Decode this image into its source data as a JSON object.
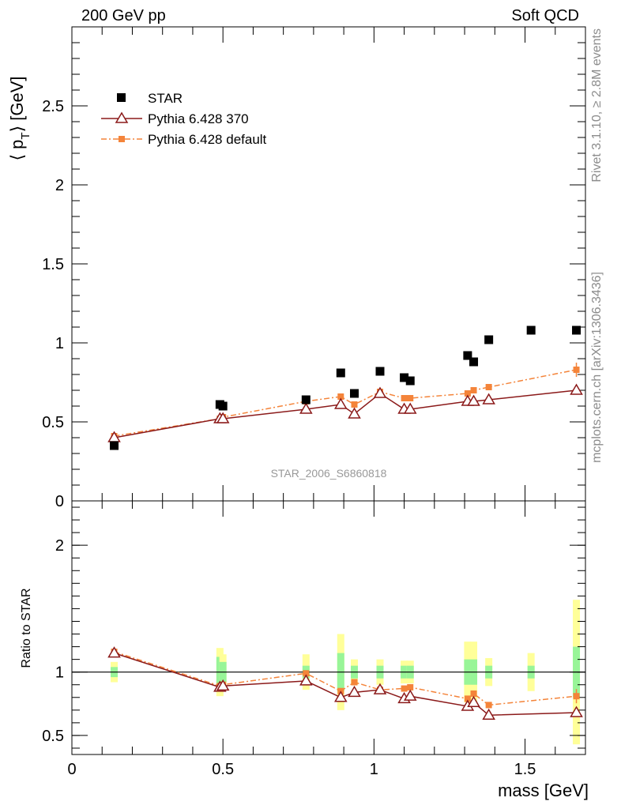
{
  "header": {
    "left": "200 GeV pp",
    "right": "Soft QCD"
  },
  "side_text": {
    "rivet": "Rivet 3.1.10, ≥ 2.8M events",
    "mcplots": "mcplots.cern.ch [arXiv:1306.3436]"
  },
  "watermark": "STAR_2006_S6860818",
  "colors": {
    "star": "#000000",
    "p370": "#8b1a1a",
    "pdefault": "#f4843a",
    "band_green": "#98f598",
    "band_yellow": "#ffff99"
  },
  "chart_data": [
    {
      "type": "scatter",
      "name": "main",
      "ylabel_main": "⟨ p",
      "ylabel_sub": "T",
      "ylabel_end": "⟩ [GeV]",
      "xlim": [
        0,
        1.7
      ],
      "ylim": [
        0,
        3.0
      ],
      "yticks": [
        {
          "v": 0,
          "label": "0"
        },
        {
          "v": 0.5,
          "label": "0.5"
        },
        {
          "v": 1,
          "label": "1"
        },
        {
          "v": 1.5,
          "label": "1.5"
        },
        {
          "v": 2,
          "label": "2"
        },
        {
          "v": 2.5,
          "label": "2.5"
        }
      ],
      "legend": [
        "STAR",
        "Pythia 6.428 370",
        "Pythia 6.428 default"
      ],
      "series": [
        {
          "name": "STAR",
          "x": [
            0.14,
            0.49,
            0.5,
            0.775,
            0.89,
            0.935,
            1.02,
            1.1,
            1.12,
            1.31,
            1.33,
            1.38,
            1.52,
            1.67
          ],
          "y": [
            0.35,
            0.61,
            0.6,
            0.64,
            0.81,
            0.68,
            0.82,
            0.78,
            0.76,
            0.92,
            0.88,
            1.02,
            1.08,
            1.08
          ]
        },
        {
          "name": "Pythia 6.428 370",
          "x": [
            0.14,
            0.49,
            0.5,
            0.775,
            0.89,
            0.935,
            1.02,
            1.1,
            1.12,
            1.31,
            1.33,
            1.38,
            1.67
          ],
          "y": [
            0.4,
            0.52,
            0.52,
            0.58,
            0.61,
            0.55,
            0.68,
            0.58,
            0.58,
            0.63,
            0.63,
            0.64,
            0.7
          ]
        },
        {
          "name": "Pythia 6.428 default",
          "x": [
            0.14,
            0.49,
            0.5,
            0.775,
            0.89,
            0.935,
            1.02,
            1.1,
            1.12,
            1.31,
            1.33,
            1.38,
            1.67
          ],
          "y": [
            0.41,
            0.52,
            0.53,
            0.63,
            0.66,
            0.61,
            0.69,
            0.65,
            0.65,
            0.68,
            0.7,
            0.72,
            0.83
          ]
        }
      ]
    },
    {
      "type": "scatter",
      "name": "ratio",
      "xlabel": "mass [GeV]",
      "ylabel": "Ratio to STAR",
      "xlim": [
        0,
        1.7
      ],
      "ylim": [
        0.35,
        2.35
      ],
      "xticks": [
        {
          "v": 0,
          "label": "0"
        },
        {
          "v": 0.5,
          "label": "0.5"
        },
        {
          "v": 1,
          "label": "1"
        },
        {
          "v": 1.5,
          "label": "1.5"
        }
      ],
      "yticks": [
        {
          "v": 0.5,
          "label": "0.5"
        },
        {
          "v": 1,
          "label": "1"
        },
        {
          "v": 2,
          "label": "2"
        }
      ],
      "bands": [
        {
          "x": 0.14,
          "g": [
            0.96,
            1.04
          ],
          "y": [
            0.92,
            1.08
          ]
        },
        {
          "x": 0.49,
          "g": [
            0.88,
            1.12
          ],
          "y": [
            0.81,
            1.19
          ]
        },
        {
          "x": 0.5,
          "g": [
            0.92,
            1.08
          ],
          "y": [
            0.86,
            1.14
          ]
        },
        {
          "x": 0.775,
          "g": [
            0.95,
            1.05
          ],
          "y": [
            0.86,
            1.14
          ]
        },
        {
          "x": 0.89,
          "g": [
            0.85,
            1.15
          ],
          "y": [
            0.7,
            1.3
          ]
        },
        {
          "x": 0.935,
          "g": [
            0.95,
            1.05
          ],
          "y": [
            0.9,
            1.1
          ]
        },
        {
          "x": 1.02,
          "g": [
            0.95,
            1.05
          ],
          "y": [
            0.9,
            1.1
          ]
        },
        {
          "x": 1.1,
          "g": [
            0.95,
            1.05
          ],
          "y": [
            0.91,
            1.09
          ]
        },
        {
          "x": 1.12,
          "g": [
            0.95,
            1.05
          ],
          "y": [
            0.91,
            1.09
          ]
        },
        {
          "x": 1.31,
          "g": [
            0.9,
            1.1
          ],
          "y": [
            0.76,
            1.24
          ]
        },
        {
          "x": 1.33,
          "g": [
            0.9,
            1.1
          ],
          "y": [
            0.76,
            1.24
          ]
        },
        {
          "x": 1.38,
          "g": [
            0.95,
            1.05
          ],
          "y": [
            0.89,
            1.11
          ]
        },
        {
          "x": 1.52,
          "g": [
            0.95,
            1.05
          ],
          "y": [
            0.85,
            1.15
          ]
        },
        {
          "x": 1.67,
          "g": [
            0.8,
            1.2
          ],
          "y": [
            0.43,
            1.57
          ]
        }
      ],
      "series": [
        {
          "name": "Pythia 6.428 370",
          "x": [
            0.14,
            0.49,
            0.5,
            0.775,
            0.89,
            0.935,
            1.02,
            1.1,
            1.12,
            1.31,
            1.33,
            1.38,
            1.67
          ],
          "y": [
            1.15,
            0.88,
            0.89,
            0.93,
            0.8,
            0.84,
            0.86,
            0.79,
            0.81,
            0.73,
            0.76,
            0.66,
            0.68
          ]
        },
        {
          "name": "Pythia 6.428 default",
          "x": [
            0.14,
            0.49,
            0.5,
            0.775,
            0.89,
            0.935,
            1.02,
            1.1,
            1.12,
            1.31,
            1.33,
            1.38,
            1.67
          ],
          "y": [
            1.16,
            0.89,
            0.9,
            0.99,
            0.85,
            0.92,
            0.86,
            0.87,
            0.88,
            0.79,
            0.83,
            0.74,
            0.81
          ]
        }
      ]
    }
  ]
}
